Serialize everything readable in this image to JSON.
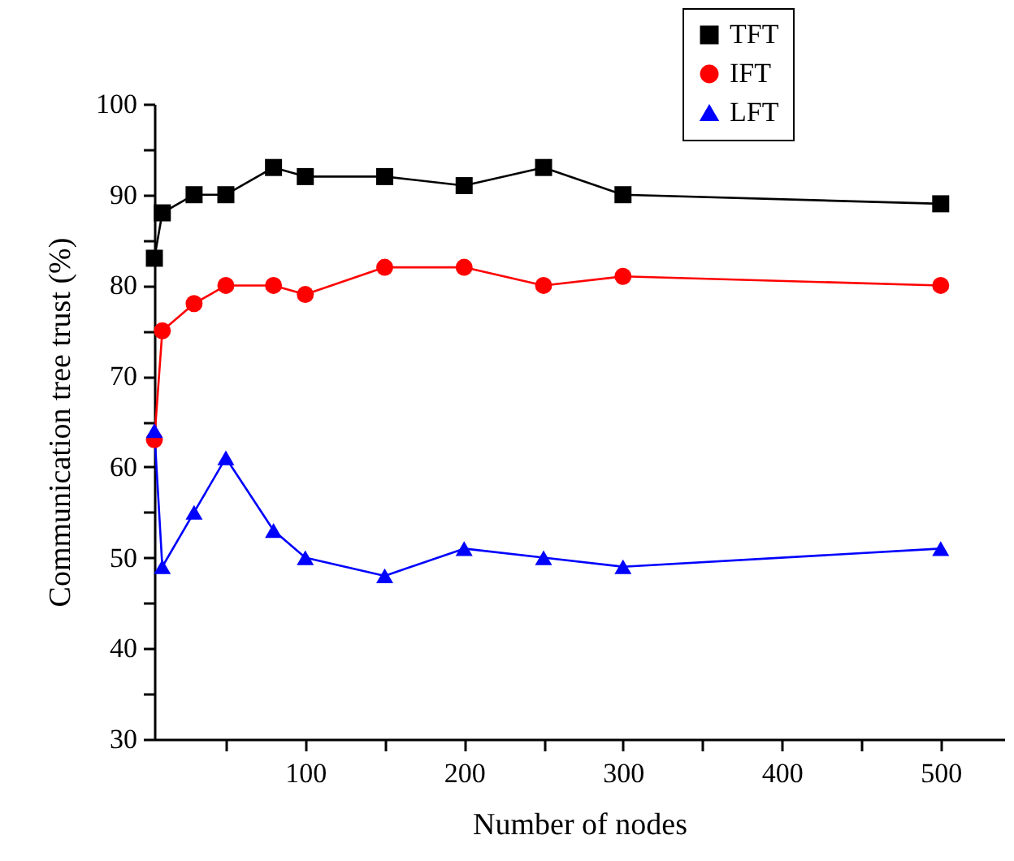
{
  "chart_data": {
    "type": "line",
    "xlabel": "Number of nodes",
    "ylabel": "Communication tree trust (%)",
    "x": [
      5,
      10,
      30,
      50,
      80,
      100,
      150,
      200,
      250,
      300,
      500
    ],
    "xlim": [
      5,
      540
    ],
    "ylim": [
      30,
      100
    ],
    "xticks": [
      {
        "value": 50,
        "label": null
      },
      100,
      {
        "value": 150,
        "label": null
      },
      200,
      {
        "value": 250,
        "label": null
      },
      300,
      {
        "value": 350,
        "label": null
      },
      400,
      {
        "value": 450,
        "label": null
      },
      500
    ],
    "yticks": [
      30,
      {
        "value": 35,
        "label": null
      },
      40,
      {
        "value": 45,
        "label": null
      },
      50,
      {
        "value": 55,
        "label": null
      },
      60,
      {
        "value": 65,
        "label": null
      },
      70,
      {
        "value": 75,
        "label": null
      },
      80,
      {
        "value": 85,
        "label": null
      },
      90,
      {
        "value": 95,
        "label": null
      },
      100
    ],
    "grid": false,
    "legend": "top right",
    "series": [
      {
        "name": "TFT",
        "color": "#000000",
        "marker": "square",
        "values": [
          83,
          88,
          90,
          90,
          93,
          92,
          92,
          91,
          93,
          90,
          89
        ]
      },
      {
        "name": "IFT",
        "color": "#ff0000",
        "marker": "circle",
        "values": [
          63,
          75,
          78,
          80,
          80,
          79,
          82,
          82,
          80,
          81,
          80
        ]
      },
      {
        "name": "LFT",
        "color": "#0000ff",
        "marker": "triangle",
        "values": [
          64,
          49,
          55,
          61,
          53,
          50,
          48,
          51,
          50,
          49,
          51
        ]
      }
    ]
  }
}
